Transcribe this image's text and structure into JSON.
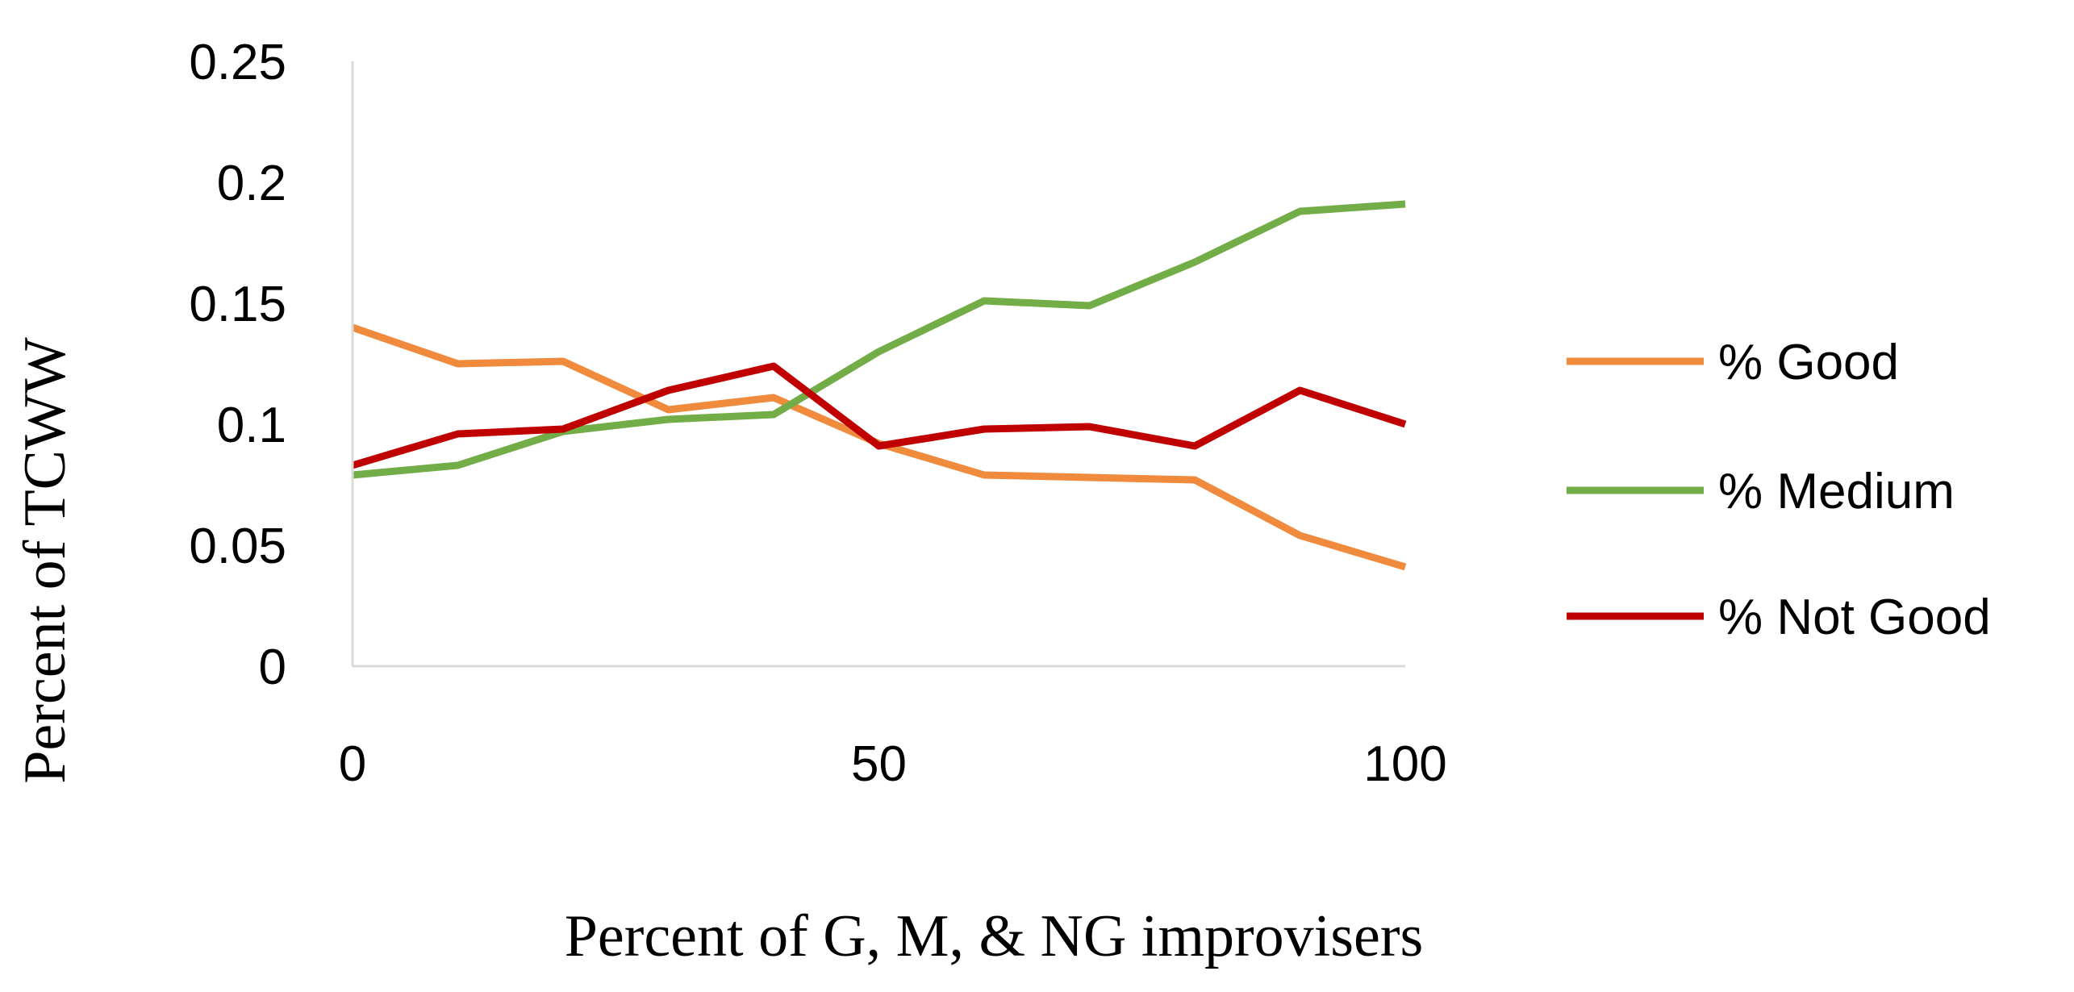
{
  "chart_data": {
    "type": "line",
    "title": "",
    "xlabel": "Percent of G, M, & NG improvisers",
    "ylabel": "Percent of TCWW",
    "xlim": [
      0,
      100
    ],
    "ylim": [
      0,
      0.25
    ],
    "x_ticks": [
      {
        "value": 0,
        "label": "0"
      },
      {
        "value": 50,
        "label": "50"
      },
      {
        "value": 100,
        "label": "100"
      }
    ],
    "y_ticks": [
      {
        "value": 0,
        "label": "0"
      },
      {
        "value": 0.05,
        "label": "0.05"
      },
      {
        "value": 0.1,
        "label": "0.1"
      },
      {
        "value": 0.15,
        "label": "0.15"
      },
      {
        "value": 0.2,
        "label": "0.2"
      },
      {
        "value": 0.25,
        "label": "0.25"
      }
    ],
    "grid": false,
    "legend_position": "right",
    "x": [
      0,
      10,
      20,
      30,
      40,
      50,
      60,
      70,
      80,
      90,
      100
    ],
    "series": [
      {
        "name": "% Good",
        "color": "#f08a3c",
        "values": [
          0.14,
          0.125,
          0.126,
          0.106,
          0.111,
          0.092,
          0.079,
          0.078,
          0.077,
          0.054,
          0.041
        ]
      },
      {
        "name": "% Medium",
        "color": "#72ad47",
        "values": [
          0.079,
          0.083,
          0.097,
          0.102,
          0.104,
          0.13,
          0.151,
          0.149,
          0.167,
          0.188,
          0.191
        ]
      },
      {
        "name": "% Not Good",
        "color": "#c00000",
        "values": [
          0.083,
          0.096,
          0.098,
          0.114,
          0.124,
          0.091,
          0.098,
          0.099,
          0.091,
          0.114,
          0.1
        ]
      }
    ]
  }
}
